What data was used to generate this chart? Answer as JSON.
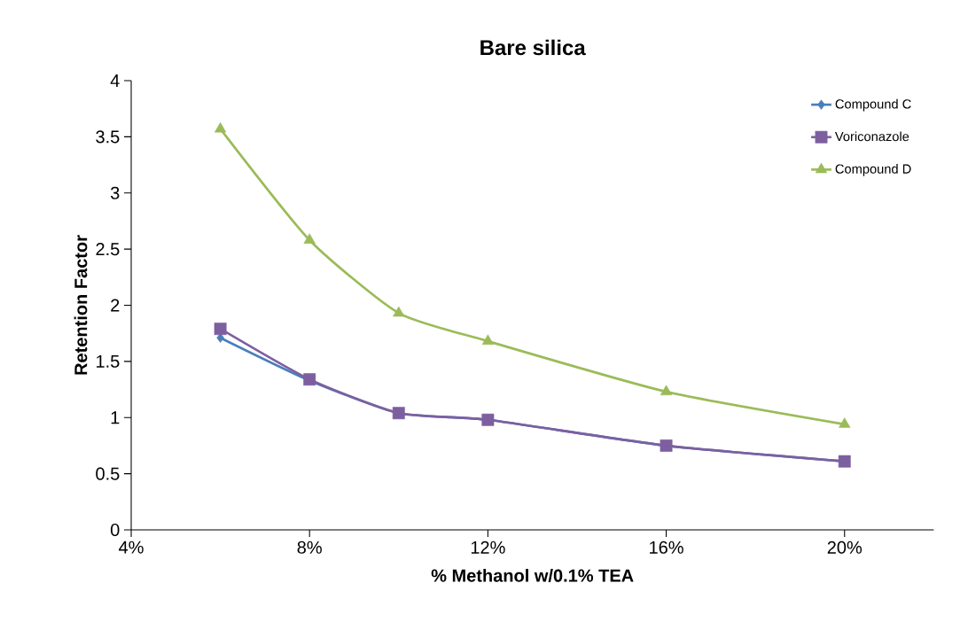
{
  "chart_data": {
    "type": "line",
    "title": "Bare silica",
    "xlabel": "% Methanol w/0.1% TEA",
    "ylabel": "Retention Factor",
    "x": [
      6,
      8,
      10,
      12,
      16,
      20
    ],
    "series": [
      {
        "name": "Compound C",
        "color": "#4a7ebb",
        "marker": "diamond",
        "values": [
          1.71,
          1.33,
          1.04,
          0.98,
          0.75,
          0.61
        ]
      },
      {
        "name": "Voriconazole",
        "color": "#7d5fa0",
        "marker": "square",
        "values": [
          1.79,
          1.34,
          1.04,
          0.98,
          0.75,
          0.61
        ]
      },
      {
        "name": "Compound D",
        "color": "#9bbb59",
        "marker": "triangle",
        "values": [
          3.57,
          2.58,
          1.93,
          1.68,
          1.23,
          0.94
        ]
      }
    ],
    "xlim": [
      4,
      22
    ],
    "xticks": [
      {
        "value": 4,
        "label": "4%"
      },
      {
        "value": 8,
        "label": "8%"
      },
      {
        "value": 12,
        "label": "12%"
      },
      {
        "value": 16,
        "label": "16%"
      },
      {
        "value": 20,
        "label": "20%"
      }
    ],
    "ylim": [
      0,
      4
    ],
    "yticks": [
      0,
      0.5,
      1,
      1.5,
      2,
      2.5,
      3,
      3.5,
      4
    ],
    "grid": false,
    "legend": "top right"
  }
}
